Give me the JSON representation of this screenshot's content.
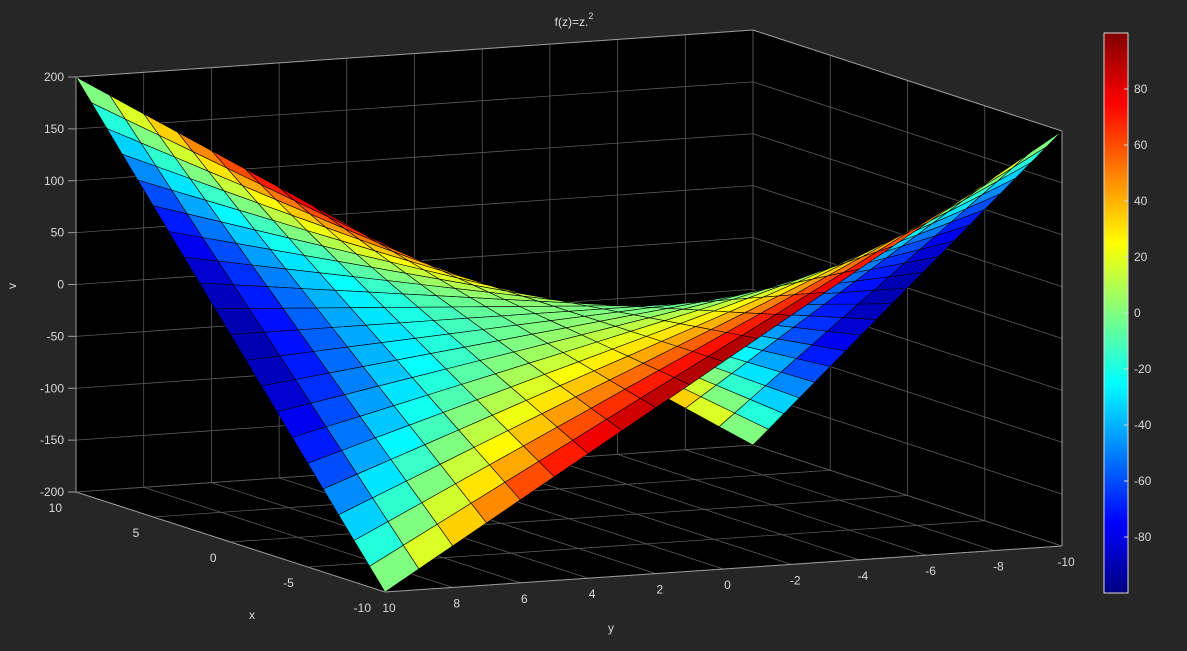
{
  "figure": {
    "background": "#262626",
    "axes_background": "#000000",
    "grid_color": "#5a5a5a",
    "text_color": "#d9d9d9"
  },
  "chart_data": {
    "type": "surface",
    "title_base": "f(z)=z.",
    "title_superscript": "2",
    "xlabel": "x",
    "ylabel": "y",
    "zlabel": "v",
    "xlim": [
      -10,
      10
    ],
    "ylim": [
      -10,
      10
    ],
    "zlim": [
      -200,
      200
    ],
    "x_ticks": [
      "-10",
      "-5",
      "0",
      "5",
      "10"
    ],
    "y_ticks": [
      "10",
      "8",
      "6",
      "4",
      "2",
      "0",
      "-2",
      "-4",
      "-6",
      "-8",
      "-10"
    ],
    "z_ticks": [
      "-200",
      "-150",
      "-100",
      "-50",
      "0",
      "50",
      "100",
      "150",
      "200"
    ],
    "surface": {
      "function": "v = 2*x*y (imaginary part of z^2, z = x + i*y)",
      "x_range": [
        -10,
        10
      ],
      "y_range": [
        -10,
        10
      ],
      "mesh_step": 1,
      "color_data": "u = x^2 - y^2 (real part of z^2)",
      "colormap": "jet",
      "edge_color": "#000000"
    },
    "colorbar": {
      "clim": [
        -100,
        100
      ],
      "ticks": [
        "-80",
        "-60",
        "-40",
        "-20",
        "0",
        "20",
        "40",
        "60",
        "80"
      ],
      "location": "right"
    },
    "grid": true,
    "box": true
  }
}
